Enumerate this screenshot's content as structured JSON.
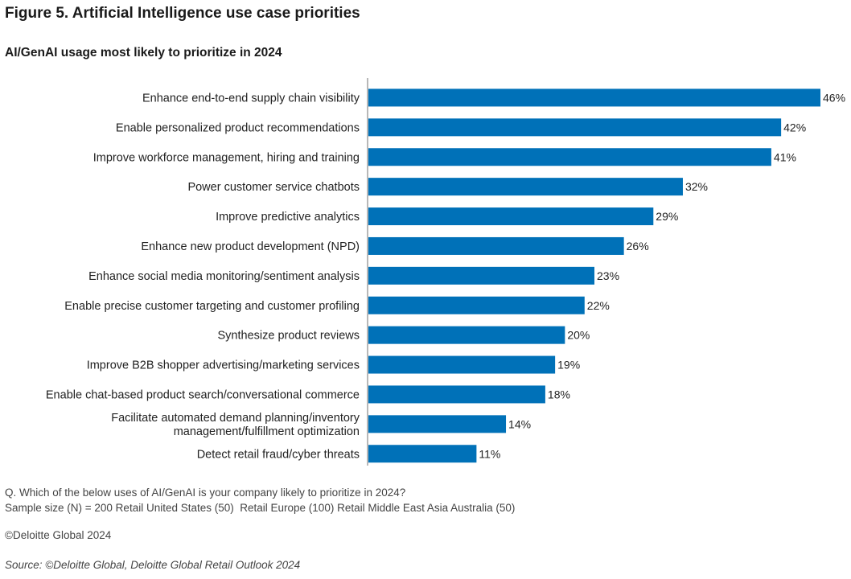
{
  "figure": {
    "title": "Figure 5. Artificial Intelligence use case priorities",
    "subtitle": "AI/GenAI usage most likely to prioritize in 2024"
  },
  "chart_data": {
    "type": "bar",
    "orientation": "horizontal",
    "title": "AI/GenAI usage most likely to prioritize in 2024",
    "categories": [
      "Enhance end-to-end supply chain visibility",
      "Enable personalized product recommendations",
      "Improve workforce management, hiring and training",
      "Power customer service chatbots",
      "Improve predictive analytics",
      "Enhance new product development (NPD)",
      "Enhance social media monitoring/sentiment analysis",
      "Enable precise customer targeting and customer profiling",
      "Synthesize product reviews",
      "Improve B2B shopper advertising/marketing services",
      "Enable chat-based product search/conversational commerce",
      "Facilitate automated demand planning/inventory\nmanagement/fulfillment optimization",
      "Detect retail fraud/cyber threats"
    ],
    "values": [
      46,
      42,
      41,
      32,
      29,
      26,
      23,
      22,
      20,
      19,
      18,
      14,
      11
    ],
    "value_labels": [
      "46%",
      "42%",
      "41%",
      "32%",
      "29%",
      "26%",
      "23%",
      "22%",
      "20%",
      "19%",
      "18%",
      "14%",
      "11%"
    ],
    "unit": "%",
    "xlim": [
      0,
      46
    ],
    "grid": false,
    "legend": "none",
    "bar_color": "#0071b8"
  },
  "notes": {
    "question": "Q. Which of the below uses of AI/GenAI is your company likely to prioritize in 2024?",
    "sample": "Sample size (N) = 200 Retail United States (50)  Retail Europe (100) Retail Middle East Asia Australia (50)"
  },
  "copyright": "©Deloitte Global 2024",
  "source": "Source: ©Deloitte Global, Deloitte Global Retail Outlook 2024"
}
